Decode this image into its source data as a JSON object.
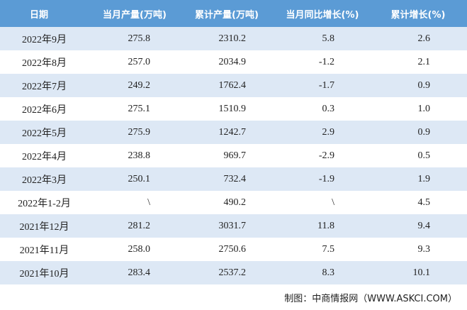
{
  "table": {
    "header": [
      "日期",
      "当月产量(万吨)",
      "累计产量(万吨)",
      "当月同比增长(%)",
      "累计增长(%)"
    ],
    "rows": [
      [
        "2022年9月",
        "275.8",
        "2310.2",
        "5.8",
        "2.6"
      ],
      [
        "2022年8月",
        "257.0",
        "2034.9",
        "-1.2",
        "2.1"
      ],
      [
        "2022年7月",
        "249.2",
        "1762.4",
        "-1.7",
        "0.9"
      ],
      [
        "2022年6月",
        "275.1",
        "1510.9",
        "0.3",
        "1.0"
      ],
      [
        "2022年5月",
        "275.9",
        "1242.7",
        "2.9",
        "0.9"
      ],
      [
        "2022年4月",
        "238.8",
        "969.7",
        "-2.9",
        "0.5"
      ],
      [
        "2022年3月",
        "250.1",
        "732.4",
        "-1.9",
        "1.9"
      ],
      [
        "2022年1-2月",
        "\\",
        "490.2",
        "\\",
        "4.5"
      ],
      [
        "2021年12月",
        "281.2",
        "3031.7",
        "11.8",
        "9.4"
      ],
      [
        "2021年11月",
        "258.0",
        "2750.6",
        "7.5",
        "9.3"
      ],
      [
        "2021年10月",
        "283.4",
        "2537.2",
        "8.3",
        "10.1"
      ]
    ]
  },
  "footer": {
    "note": "制图：中商情报网（WWW.ASKCI.COM）"
  }
}
